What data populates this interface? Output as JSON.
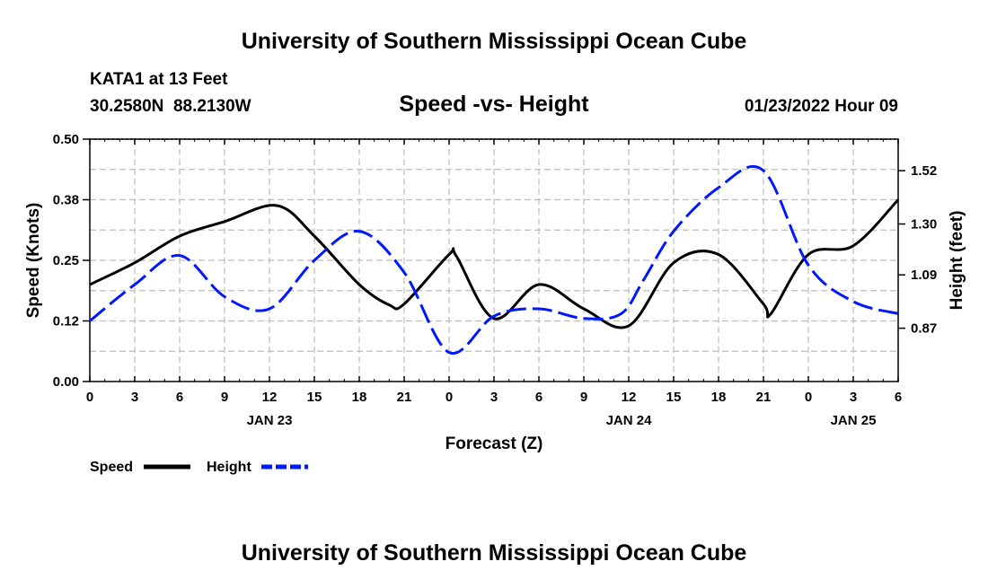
{
  "page": {
    "title": "University of Southern Mississippi Ocean Cube",
    "footer_title": "University of Southern Mississippi Ocean Cube"
  },
  "station": {
    "name": "KATA1 at 13 Feet",
    "coords": "30.2580N  88.2130W",
    "datetime": "01/23/2022 Hour 09"
  },
  "chart_data": {
    "type": "line",
    "title": "Speed -vs- Height",
    "xlabel": "Forecast (Z)",
    "ylabel_left": "Speed (Knots)",
    "ylabel_right": "Height (feet)",
    "x_range": [
      0,
      54
    ],
    "x_ticks": [
      0,
      3,
      6,
      9,
      12,
      15,
      18,
      21,
      24,
      27,
      30,
      33,
      36,
      39,
      42,
      45,
      48,
      51,
      54
    ],
    "x_tick_labels": [
      "0",
      "3",
      "6",
      "9",
      "12",
      "15",
      "18",
      "21",
      "0",
      "3",
      "6",
      "9",
      "12",
      "15",
      "18",
      "21",
      "0",
      "3",
      "6"
    ],
    "date_labels": [
      {
        "label": "JAN 23",
        "hour": 12
      },
      {
        "label": "JAN 24",
        "hour": 36
      },
      {
        "label": "JAN 25",
        "hour": 51
      }
    ],
    "y_left": {
      "range": [
        0,
        0.5
      ],
      "ticks": [
        0,
        0.125,
        0.25,
        0.375,
        0.5
      ],
      "tick_labels": [
        "0.00",
        "0.12",
        "0.25",
        "0.38",
        "0.50"
      ]
    },
    "y_right": {
      "range": [
        0.65,
        1.65
      ],
      "ticks": [
        0.87,
        1.09,
        1.3,
        1.52
      ],
      "tick_labels": [
        "0.87",
        "1.09",
        "1.30",
        "1.52"
      ]
    },
    "grid": true,
    "legend_position": "bottom-left",
    "series": [
      {
        "name": "Speed",
        "axis": "left",
        "color": "#000000",
        "dash": "solid",
        "x": [
          0,
          3,
          6,
          9,
          12.5,
          15,
          18,
          20,
          21,
          24,
          24.5,
          27,
          30,
          33,
          36,
          39,
          42,
          45,
          45.5,
          48,
          51,
          54
        ],
        "values": [
          0.2,
          0.245,
          0.3,
          0.33,
          0.363,
          0.3,
          0.2,
          0.158,
          0.16,
          0.262,
          0.258,
          0.13,
          0.2,
          0.15,
          0.115,
          0.245,
          0.262,
          0.16,
          0.14,
          0.262,
          0.28,
          0.375
        ]
      },
      {
        "name": "Height",
        "axis": "right",
        "color": "#0018ff",
        "dash": "dashed",
        "x": [
          0,
          3,
          6,
          9,
          12,
          15,
          18,
          21,
          24,
          27,
          30,
          33,
          35.5,
          37,
          39,
          42,
          45,
          48,
          51,
          54
        ],
        "values": [
          0.9,
          1.05,
          1.17,
          1.0,
          0.95,
          1.15,
          1.27,
          1.1,
          0.77,
          0.92,
          0.95,
          0.91,
          0.93,
          1.07,
          1.27,
          1.45,
          1.52,
          1.13,
          0.98,
          0.93
        ]
      }
    ]
  }
}
